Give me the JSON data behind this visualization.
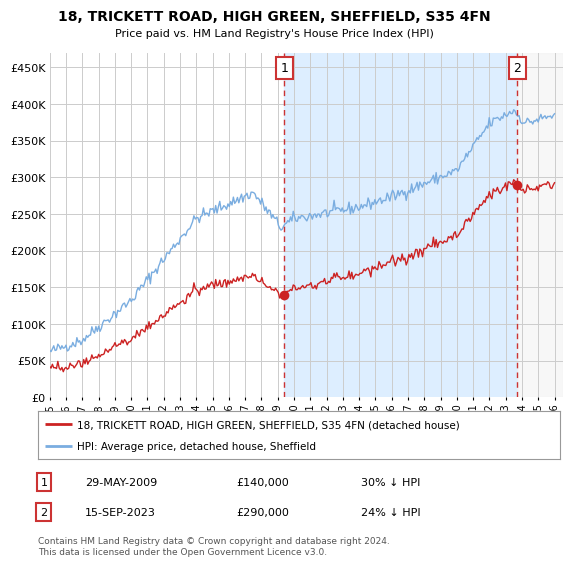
{
  "title": "18, TRICKETT ROAD, HIGH GREEN, SHEFFIELD, S35 4FN",
  "subtitle": "Price paid vs. HM Land Registry's House Price Index (HPI)",
  "ytick_values": [
    0,
    50000,
    100000,
    150000,
    200000,
    250000,
    300000,
    350000,
    400000,
    450000
  ],
  "ylim": [
    0,
    470000
  ],
  "xlim_start": 1995.0,
  "xlim_end": 2026.5,
  "hpi_color": "#7aade0",
  "price_color": "#cc2222",
  "marker1_x": 2009.41,
  "marker1_y": 140000,
  "marker2_x": 2023.71,
  "marker2_y": 290000,
  "marker1_date": "29-MAY-2009",
  "marker1_price": "£140,000",
  "marker1_hpi": "30% ↓ HPI",
  "marker2_date": "15-SEP-2023",
  "marker2_price": "£290,000",
  "marker2_hpi": "24% ↓ HPI",
  "legend_line1": "18, TRICKETT ROAD, HIGH GREEN, SHEFFIELD, S35 4FN (detached house)",
  "legend_line2": "HPI: Average price, detached house, Sheffield",
  "footnote": "Contains HM Land Registry data © Crown copyright and database right 2024.\nThis data is licensed under the Open Government Licence v3.0.",
  "background_color": "#ffffff",
  "plot_bg_color": "#ffffff",
  "grid_color": "#cccccc",
  "vline_color": "#cc3333",
  "shade_color": "#ddeeff",
  "hatch_color": "#cccccc"
}
